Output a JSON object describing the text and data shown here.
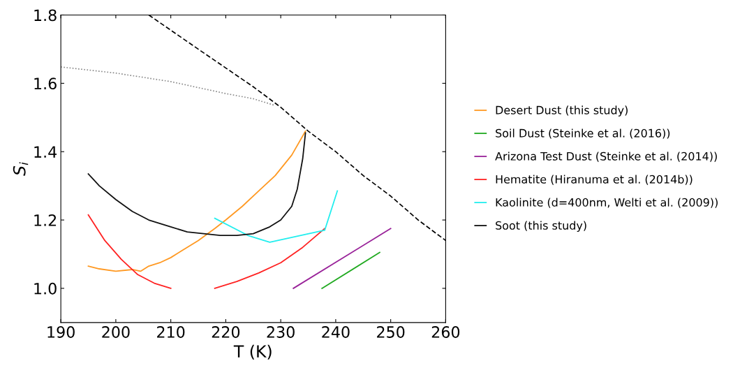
{
  "chart_data": {
    "type": "line",
    "xlabel": "T (K)",
    "ylabel": "S$_{i}$",
    "xlim": [
      190,
      260
    ],
    "xticks": [
      190,
      200,
      210,
      220,
      230,
      240,
      250,
      260
    ],
    "ylim": [
      0.9,
      1.8
    ],
    "yticks": [
      {
        "value": 1.0,
        "label": "1.0"
      },
      {
        "value": 1.2,
        "label": "1.2"
      },
      {
        "value": 1.4,
        "label": "1.4"
      },
      {
        "value": 1.6,
        "label": "1.6"
      },
      {
        "value": 1.8,
        "label": "1.8"
      }
    ],
    "grid": false,
    "legend": "right",
    "marker": "none",
    "series": [
      {
        "color": "#000000",
        "line_style": "dashed",
        "x": [
          206,
          215,
          220,
          225,
          230,
          235,
          240,
          245,
          250,
          255,
          260
        ],
        "values": [
          1.8,
          1.7,
          1.645,
          1.59,
          1.53,
          1.46,
          1.4,
          1.33,
          1.27,
          1.2,
          1.14
        ]
      },
      {
        "color": "#888888",
        "line_style": "dotted",
        "x": [
          190,
          200,
          210,
          220,
          225,
          229
        ],
        "values": [
          1.648,
          1.63,
          1.605,
          1.57,
          1.555,
          1.535
        ]
      },
      {
        "name": "Desert Dust (this study)",
        "color": "#ff9922",
        "x": [
          195,
          197,
          200,
          203,
          204.5,
          206,
          208,
          210,
          212,
          215,
          218,
          220,
          223,
          226,
          229,
          232,
          234.5
        ],
        "values": [
          1.065,
          1.057,
          1.05,
          1.055,
          1.05,
          1.065,
          1.075,
          1.09,
          1.11,
          1.14,
          1.175,
          1.2,
          1.24,
          1.285,
          1.33,
          1.39,
          1.46
        ]
      },
      {
        "name": "Soil Dust (Steinke et al. (2016))",
        "color": "#22aa22",
        "x": [
          237.5,
          248
        ],
        "values": [
          1.0,
          1.105
        ]
      },
      {
        "name": "Arizona Test Dust (Steinke et al. (2014))",
        "color": "#992299",
        "x": [
          232.3,
          250
        ],
        "values": [
          1.0,
          1.175
        ]
      },
      {
        "name": "Hematite (Hiranuma et al. (2014b))",
        "color": "#ff2222",
        "x": [
          195,
          198,
          201,
          204,
          207,
          210,
          214,
          218,
          222,
          226,
          230,
          234,
          238
        ],
        "values": [
          1.215,
          1.14,
          1.085,
          1.04,
          1.015,
          1.0,
          null,
          1.0,
          1.02,
          1.045,
          1.075,
          1.12,
          1.175
        ]
      },
      {
        "name": "Kaolinite (d=400nm, Welti et al. (2009))",
        "color": "#22eeee",
        "x": [
          218,
          224,
          228,
          238,
          240.3
        ],
        "values": [
          1.205,
          1.155,
          1.135,
          1.17,
          1.285
        ]
      },
      {
        "name": "Soot (this study)",
        "color": "#111111",
        "x": [
          195,
          197,
          200,
          203,
          206,
          210,
          213,
          216,
          219,
          222,
          225,
          228,
          230,
          232,
          233,
          234,
          234.5
        ],
        "values": [
          1.335,
          1.3,
          1.26,
          1.225,
          1.2,
          1.18,
          1.165,
          1.16,
          1.155,
          1.155,
          1.16,
          1.18,
          1.2,
          1.24,
          1.29,
          1.38,
          1.455
        ]
      }
    ]
  }
}
